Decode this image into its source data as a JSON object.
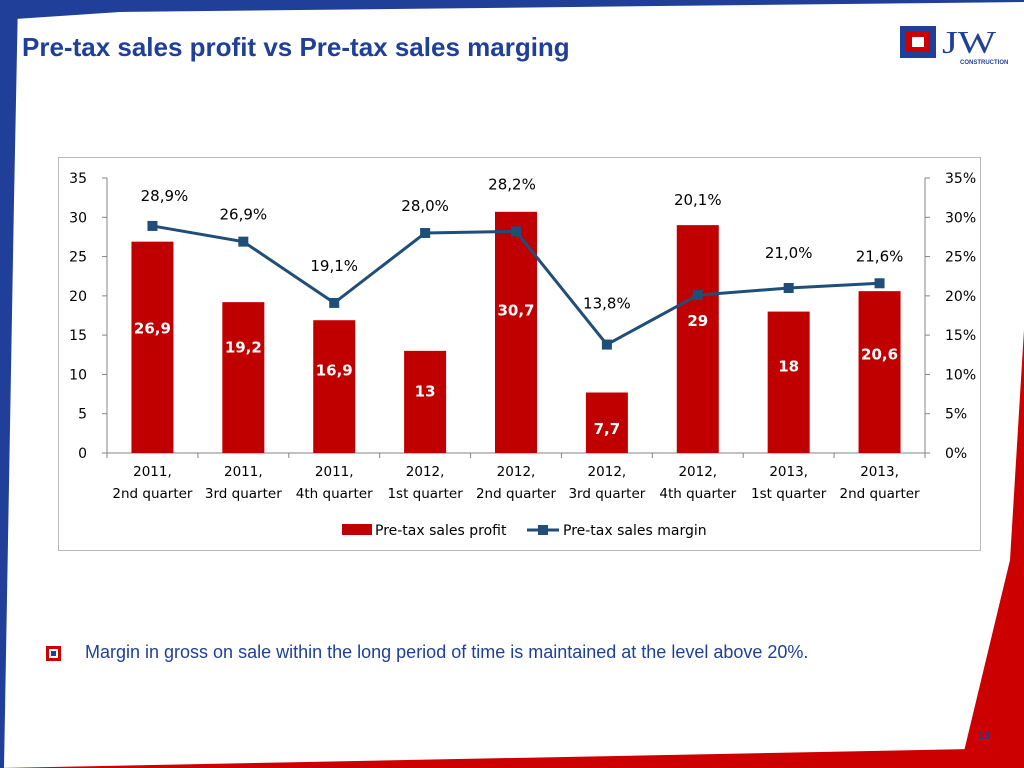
{
  "slide": {
    "title": "Pre-tax sales profit vs Pre-tax sales marging",
    "bullet": "Margin in gross on sale within the long period of time is maintained at the level above 20%.",
    "page_number": "10",
    "logo_text": "JW",
    "logo_subtext": "CONSTRUCTION",
    "colors": {
      "accent_blue": "#1f3f99",
      "accent_red": "#cc0000"
    }
  },
  "chart_data": {
    "type": "bar",
    "title": "",
    "xlabel": "",
    "ylabel": "",
    "categories": [
      "2011, 2nd quarter",
      "2011, 3rd quarter",
      "2011, 4th quarter",
      "2012, 1st quarter",
      "2012, 2nd quarter",
      "2012, 3rd quarter",
      "2012, 4th quarter",
      "2013, 1st quarter",
      "2013, 2nd quarter"
    ],
    "series": [
      {
        "name": "Pre-tax sales profit",
        "type": "bar",
        "axis": "left",
        "color": "#c00000",
        "values": [
          26.9,
          19.2,
          16.9,
          13,
          30.7,
          7.7,
          29,
          18,
          20.6
        ],
        "labels": [
          "26,9",
          "19,2",
          "16,9",
          "13",
          "30,7",
          "7,7",
          "29",
          "18",
          "20,6"
        ]
      },
      {
        "name": "Pre-tax sales margin",
        "type": "line",
        "axis": "right",
        "color": "#1f4e79",
        "values": [
          28.9,
          26.9,
          19.1,
          28.0,
          28.2,
          13.8,
          20.1,
          21.0,
          21.6
        ],
        "labels": [
          "28,9%",
          "26,9%",
          "19,1%",
          "28,0%",
          "28,2%",
          "13,8%",
          "20,1%",
          "21,0%",
          "21,6%"
        ]
      }
    ],
    "ylim": [
      0,
      35
    ],
    "yticks": [
      "0",
      "5",
      "10",
      "15",
      "20",
      "25",
      "30",
      "35"
    ],
    "y2lim": [
      0,
      35
    ],
    "y2ticks": [
      "0%",
      "5%",
      "10%",
      "15%",
      "20%",
      "25%",
      "30%",
      "35%"
    ],
    "grid": false,
    "legend_position": "bottom"
  }
}
